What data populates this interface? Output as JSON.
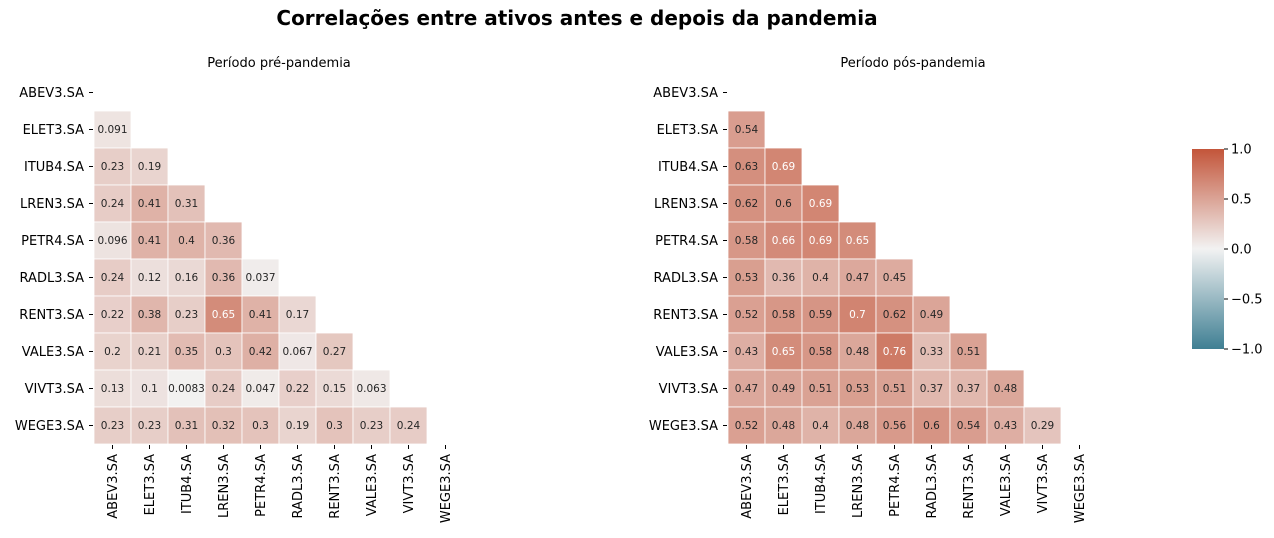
{
  "figure": {
    "title": "Correlações entre ativos antes e depois da pandemia"
  },
  "chart_data": [
    {
      "type": "heatmap",
      "title": "Período pré-pandemia",
      "labels": [
        "ABEV3.SA",
        "ELET3.SA",
        "ITUB4.SA",
        "LREN3.SA",
        "PETR4.SA",
        "RADL3.SA",
        "RENT3.SA",
        "VALE3.SA",
        "VIVT3.SA",
        "WEGE3.SA"
      ],
      "mask": "upper-triangle",
      "vmin": -1,
      "vmax": 1,
      "lower_values": [
        [],
        [
          "0.091"
        ],
        [
          "0.23",
          "0.19"
        ],
        [
          "0.24",
          "0.41",
          "0.31"
        ],
        [
          "0.096",
          "0.41",
          "0.4",
          "0.36"
        ],
        [
          "0.24",
          "0.12",
          "0.16",
          "0.36",
          "0.037"
        ],
        [
          "0.22",
          "0.38",
          "0.23",
          "0.65",
          "0.41",
          "0.17"
        ],
        [
          "0.2",
          "0.21",
          "0.35",
          "0.3",
          "0.42",
          "0.067",
          "0.27"
        ],
        [
          "0.13",
          "0.1",
          "0.0083",
          "0.24",
          "0.047",
          "0.22",
          "0.15",
          "0.063"
        ],
        [
          "0.23",
          "0.23",
          "0.31",
          "0.32",
          "0.3",
          "0.19",
          "0.3",
          "0.23",
          "0.24"
        ]
      ]
    },
    {
      "type": "heatmap",
      "title": "Período pós-pandemia",
      "labels": [
        "ABEV3.SA",
        "ELET3.SA",
        "ITUB4.SA",
        "LREN3.SA",
        "PETR4.SA",
        "RADL3.SA",
        "RENT3.SA",
        "VALE3.SA",
        "VIVT3.SA",
        "WEGE3.SA"
      ],
      "mask": "upper-triangle",
      "vmin": -1,
      "vmax": 1,
      "lower_values": [
        [],
        [
          "0.54"
        ],
        [
          "0.63",
          "0.69"
        ],
        [
          "0.62",
          "0.6",
          "0.69"
        ],
        [
          "0.58",
          "0.66",
          "0.69",
          "0.65"
        ],
        [
          "0.53",
          "0.36",
          "0.4",
          "0.47",
          "0.45"
        ],
        [
          "0.52",
          "0.58",
          "0.59",
          "0.7",
          "0.62",
          "0.49"
        ],
        [
          "0.43",
          "0.65",
          "0.58",
          "0.48",
          "0.76",
          "0.33",
          "0.51"
        ],
        [
          "0.47",
          "0.49",
          "0.51",
          "0.53",
          "0.51",
          "0.37",
          "0.37",
          "0.48"
        ],
        [
          "0.52",
          "0.48",
          "0.4",
          "0.48",
          "0.56",
          "0.6",
          "0.54",
          "0.43",
          "0.29"
        ]
      ]
    }
  ],
  "colorbar": {
    "ticks": [
      "1.0",
      "0.5",
      "0.0",
      "−0.5",
      "−1.0"
    ],
    "tick_values": [
      1,
      0.5,
      0,
      -0.5,
      -1
    ],
    "palette": {
      "low": "#3f7f93",
      "mid": "#f2f2f2",
      "high": "#c3553a"
    }
  }
}
